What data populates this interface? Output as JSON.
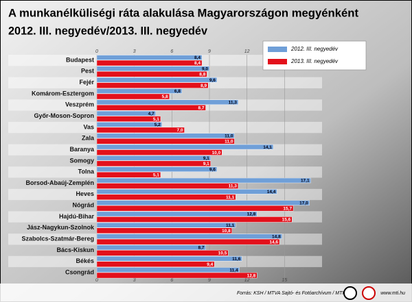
{
  "chart_data": {
    "type": "bar",
    "orientation": "horizontal",
    "title": [
      "A munkanélküliségi ráta alakulása Magyarországon megyénként",
      "2012. III. negyedév/2013. III. negyedév"
    ],
    "categories": [
      "Budapest",
      "Pest",
      "Fejér",
      "Komárom-Esztergom",
      "Veszprém",
      "Győr-Moson-Sopron",
      "Vas",
      "Zala",
      "Baranya",
      "Somogy",
      "Tolna",
      "Borsod-Abaúj-Zemplén",
      "Heves",
      "Nógrád",
      "Hajdú-Bihar",
      "Jász-Nagykun-Szolnok",
      "Szabolcs-Szatmár-Bereg",
      "Bács-Kiskun",
      "Békés",
      "Csongrád"
    ],
    "series": [
      {
        "name": "2012. III. negyedév",
        "color": "#6f9fd8",
        "values": [
          8.4,
          9.0,
          9.6,
          6.8,
          11.3,
          4.7,
          5.2,
          11.0,
          14.1,
          9.1,
          9.6,
          17.1,
          14.4,
          17.0,
          12.8,
          11.1,
          14.8,
          8.7,
          11.6,
          11.4
        ],
        "value_labels": [
          "8,4",
          "9,0",
          "9,6",
          "6,8",
          "11,3",
          "4,7",
          "5,2",
          "11,0",
          "14,1",
          "9,1",
          "9,6",
          "17,1",
          "14,4",
          "17,0",
          "12,8",
          "11,1",
          "14,8",
          "8,7",
          "11,6",
          "11,4"
        ]
      },
      {
        "name": "2013. III. negyedév",
        "color": "#e3101b",
        "values": [
          8.4,
          8.8,
          8.9,
          5.8,
          8.7,
          5.1,
          7.0,
          11.0,
          10.0,
          9.1,
          5.1,
          11.3,
          11.1,
          15.7,
          15.6,
          10.8,
          14.6,
          10.5,
          9.4,
          12.8
        ],
        "value_labels": [
          "8,4",
          "8,8",
          "8,9",
          "5,8",
          "8,7",
          "5,1",
          "7,0",
          "11,0",
          "10,0",
          "9,1",
          "5,1",
          "11,3",
          "11,1",
          "15,7",
          "15,6",
          "10,8",
          "14,6",
          "10,5",
          "9,4",
          "12,8"
        ]
      }
    ],
    "xlim": [
      0,
      18
    ],
    "xticks": [
      0,
      3,
      6,
      9,
      12,
      15
    ],
    "grid": true,
    "legend": "top-right",
    "source": "Forrás: KSH / MTVA Sajtó- és Fotóarchívum / MTI",
    "website": "www.mti.hu"
  }
}
